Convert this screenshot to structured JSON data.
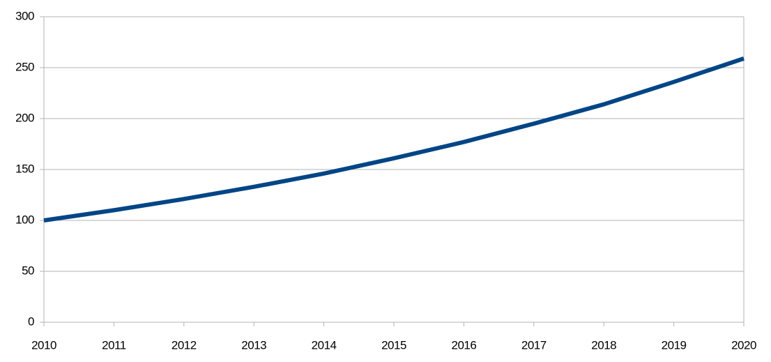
{
  "chart_data": {
    "type": "line",
    "x": [
      2010,
      2011,
      2012,
      2013,
      2014,
      2015,
      2016,
      2017,
      2018,
      2019,
      2020
    ],
    "series": [
      {
        "color": "#004586",
        "values": [
          100,
          110,
          121,
          133,
          146,
          161,
          177,
          195,
          214,
          236,
          259
        ]
      }
    ],
    "xlim": [
      2010,
      2020
    ],
    "xticks": [
      2010,
      2011,
      2012,
      2013,
      2014,
      2015,
      2016,
      2017,
      2018,
      2019,
      2020
    ],
    "ylim": [
      0,
      300
    ],
    "yticks": [
      0,
      50,
      100,
      150,
      200,
      250,
      300
    ],
    "grid": true
  }
}
